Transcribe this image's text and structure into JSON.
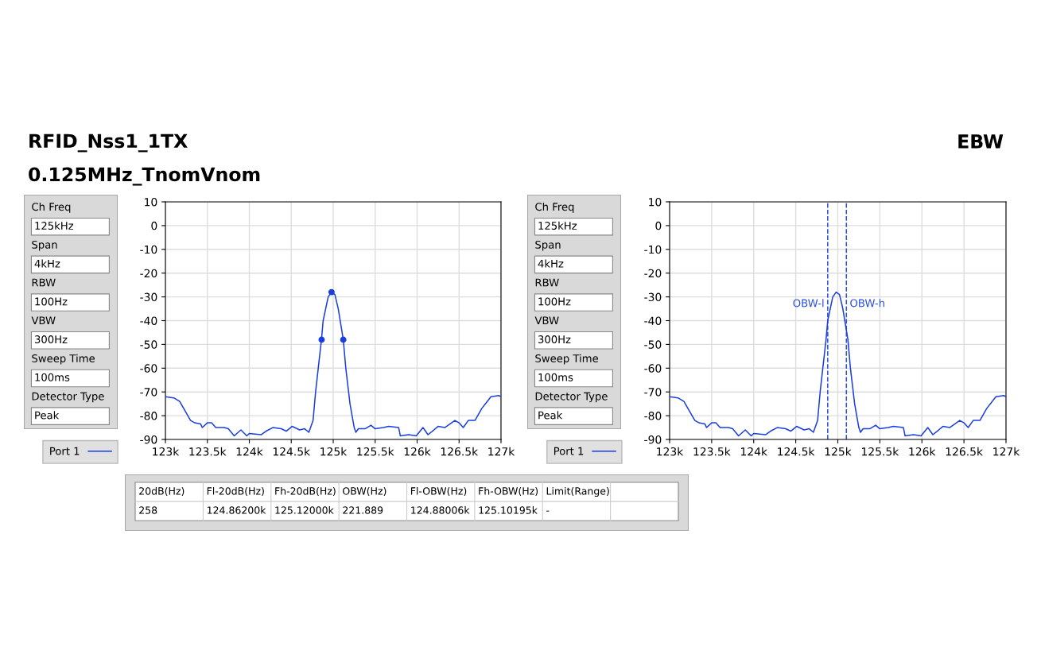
{
  "chart_data": [
    {
      "type": "other",
      "annotations": [
        "Ch Freq",
        "125kHz",
        "Span",
        "4kHz",
        "RBW",
        "100Hz",
        "VBW",
        "300Hz",
        "Sweep Time",
        "100ms",
        "Detector Type",
        "Peak"
      ]
    },
    {
      "type": "line",
      "title": "RFID_Nss1_1TX",
      "subtitle": "0.125MHz_TnomVnom",
      "series": [
        {
          "name": "Port 1",
          "color": "#1a3ee0",
          "x": [
            123000,
            123100,
            123170,
            123300,
            123350,
            123420,
            123440,
            123500,
            123550,
            123600,
            123700,
            123750,
            123820,
            123900,
            123970,
            124000,
            124140,
            124200,
            124280,
            124380,
            124440,
            124510,
            124600,
            124660,
            124710,
            124760,
            124790,
            124860,
            124880,
            124940,
            124980,
            125020,
            125060,
            125120,
            125150,
            125200,
            125250,
            125270,
            125300,
            125380,
            125450,
            125500,
            125600,
            125660,
            125780,
            125800,
            125900,
            125990,
            126070,
            126130,
            126200,
            126250,
            126330,
            126450,
            126500,
            126550,
            126610,
            126690,
            126770,
            126880,
            126970,
            127000
          ],
          "values": [
            -72,
            -72.5,
            -74,
            -82,
            -83,
            -83.5,
            -85,
            -83,
            -83,
            -85,
            -85,
            -85.5,
            -88.5,
            -86,
            -88.5,
            -87.5,
            -88,
            -86.5,
            -85,
            -85.5,
            -86.5,
            -84.5,
            -86,
            -85.5,
            -87,
            -82,
            -70,
            -48,
            -40,
            -30,
            -28,
            -29,
            -35,
            -48,
            -60,
            -75,
            -85,
            -87,
            -85.5,
            -85.5,
            -84,
            -85.5,
            -85,
            -84.5,
            -85,
            -88.5,
            -88,
            -88.5,
            -85,
            -88,
            -86,
            -84.5,
            -85,
            -82,
            -83,
            -85,
            -82,
            -82,
            -77,
            -72,
            -71.5,
            -72
          ]
        },
        {
          "type": "scatter",
          "color": "#1a3ee0",
          "marker": "circle",
          "x": [
            124980,
            124862,
            125120
          ],
          "values": [
            -28,
            -48,
            -48
          ]
        }
      ],
      "xlim": [
        123000,
        127000
      ],
      "xticks": [
        {
          "value": 123000,
          "label": "123k"
        },
        {
          "value": 123500,
          "label": "123.5k"
        },
        {
          "value": 124000,
          "label": "124k"
        },
        {
          "value": 124500,
          "label": "124.5k"
        },
        {
          "value": 125000,
          "label": "125k"
        },
        {
          "value": 125500,
          "label": "125.5k"
        },
        {
          "value": 126000,
          "label": "126k"
        },
        {
          "value": 126500,
          "label": "126.5k"
        },
        {
          "value": 127000,
          "label": "127k"
        }
      ],
      "ylim": [
        -90,
        10
      ],
      "yticks": [
        -90,
        -80,
        -70,
        -60,
        -50,
        -40,
        -30,
        -20,
        -10,
        0,
        10
      ],
      "grid": true,
      "legend": "bottom left"
    },
    {
      "type": "other",
      "annotations": [
        "Ch Freq",
        "125kHz",
        "Span",
        "4kHz",
        "RBW",
        "100Hz",
        "VBW",
        "300Hz",
        "Sweep Time",
        "100ms",
        "Detector Type",
        "Peak"
      ]
    },
    {
      "type": "line",
      "title": "EBW",
      "series": [
        {
          "name": "Port 1",
          "color": "#1a3ee0",
          "x": [
            123000,
            123100,
            123170,
            123300,
            123350,
            123420,
            123440,
            123500,
            123550,
            123600,
            123700,
            123750,
            123820,
            123900,
            123970,
            124000,
            124140,
            124200,
            124280,
            124380,
            124440,
            124510,
            124600,
            124660,
            124710,
            124760,
            124790,
            124860,
            124880,
            124940,
            124980,
            125020,
            125060,
            125120,
            125150,
            125200,
            125250,
            125270,
            125300,
            125380,
            125450,
            125500,
            125600,
            125660,
            125780,
            125800,
            125900,
            125990,
            126070,
            126130,
            126200,
            126250,
            126330,
            126450,
            126500,
            126550,
            126610,
            126690,
            126770,
            126880,
            126970,
            127000
          ],
          "values": [
            -72,
            -72.5,
            -74,
            -82,
            -83,
            -83.5,
            -85,
            -83,
            -83,
            -85,
            -85,
            -85.5,
            -88.5,
            -86,
            -88.5,
            -87.5,
            -88,
            -86.5,
            -85,
            -85.5,
            -86.5,
            -84.5,
            -86,
            -85.5,
            -87,
            -82,
            -70,
            -48,
            -40,
            -30,
            -28,
            -29,
            -35,
            -48,
            -60,
            -75,
            -85,
            -87,
            -85.5,
            -85.5,
            -84,
            -85.5,
            -85,
            -84.5,
            -85,
            -88.5,
            -88,
            -88.5,
            -85,
            -88,
            -86,
            -84.5,
            -85,
            -82,
            -83,
            -85,
            -82,
            -82,
            -77,
            -72,
            -71.5,
            -72
          ]
        }
      ],
      "ref_lines": [
        {
          "axis": "x",
          "value": 124880.06,
          "label": "OBW-l",
          "color": "#2a4fe0",
          "line_style": "dashed"
        },
        {
          "axis": "x",
          "value": 125101.95,
          "label": "OBW-h",
          "color": "#2a4fe0",
          "line_style": "dashed"
        }
      ],
      "xlim": [
        123000,
        127000
      ],
      "xticks": [
        {
          "value": 123000,
          "label": "123k"
        },
        {
          "value": 123500,
          "label": "123.5k"
        },
        {
          "value": 124000,
          "label": "124k"
        },
        {
          "value": 124500,
          "label": "124.5k"
        },
        {
          "value": 125000,
          "label": "125k"
        },
        {
          "value": 125500,
          "label": "125.5k"
        },
        {
          "value": 126000,
          "label": "126k"
        },
        {
          "value": 126500,
          "label": "126.5k"
        },
        {
          "value": 127000,
          "label": "127k"
        }
      ],
      "ylim": [
        -90,
        10
      ],
      "yticks": [
        -90,
        -80,
        -70,
        -60,
        -50,
        -40,
        -30,
        -20,
        -10,
        0,
        10
      ],
      "grid": true,
      "legend": "bottom left"
    },
    {
      "type": "other",
      "categories": [
        "20dB(Hz)",
        "Fl-20dB(Hz)",
        "Fh-20dB(Hz)",
        "OBW(Hz)",
        "Fl-OBW(Hz)",
        "Fh-OBW(Hz)",
        "Limit(Range)",
        null
      ],
      "annotations": [
        "258",
        "124.86200k",
        "125.12000k",
        "221.889",
        "124.88006k",
        "125.10195k",
        "-",
        null
      ]
    }
  ]
}
